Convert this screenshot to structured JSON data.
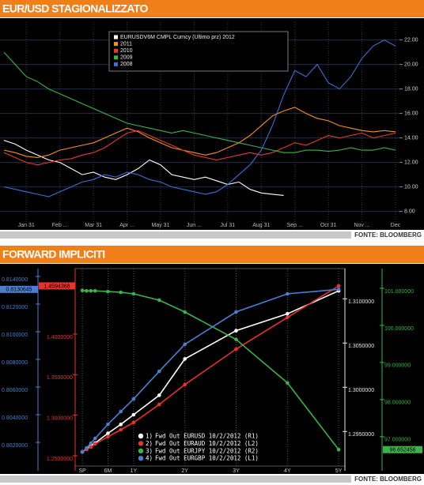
{
  "chart_data": [
    {
      "type": "line",
      "title": "EUR/USD STAGIONALIZZATO",
      "source": "FONTE: BLOOMBERG",
      "categories": [
        null,
        null,
        "Jan 31",
        null,
        null,
        "Feb ...",
        null,
        null,
        "Mar 31",
        null,
        null,
        "Apr ...",
        null,
        null,
        "May 31",
        null,
        null,
        "Jun ...",
        null,
        null,
        "Jul 31",
        null,
        null,
        "Aug 31",
        null,
        null,
        "Sep ...",
        null,
        null,
        "Oct 31",
        null,
        null,
        "Nov ...",
        null,
        null,
        "Dec"
      ],
      "series": [
        {
          "name": "EURUSDV6M CMPL Curncy (Ultimo prz) 2012",
          "color": "#ffffff",
          "values": [
            13.8,
            13.5,
            13.0,
            12.6,
            12.2,
            12.0,
            11.5,
            11.0,
            11.2,
            10.8,
            10.6,
            11.0,
            11.5,
            12.2,
            11.8,
            11.0,
            10.8,
            10.6,
            10.8,
            10.5,
            10.2,
            10.4,
            9.8,
            9.5,
            9.4,
            9.3,
            null,
            null,
            null,
            null,
            null,
            null,
            null,
            null,
            null,
            null
          ]
        },
        {
          "name": "2011",
          "color": "#f5901e",
          "values": [
            13.0,
            12.8,
            12.5,
            12.4,
            12.6,
            13.0,
            13.2,
            13.4,
            13.6,
            14.0,
            14.4,
            14.8,
            14.5,
            14.0,
            13.6,
            13.2,
            13.0,
            12.8,
            12.6,
            12.8,
            13.2,
            13.6,
            14.2,
            15.0,
            15.8,
            16.2,
            16.5,
            16.0,
            15.6,
            15.4,
            15.0,
            14.8,
            14.6,
            14.5,
            14.6,
            14.5
          ]
        },
        {
          "name": "2010",
          "color": "#e83a2a",
          "values": [
            12.8,
            12.4,
            12.0,
            11.8,
            12.0,
            12.2,
            12.3,
            12.6,
            12.8,
            13.2,
            13.8,
            14.4,
            14.6,
            14.2,
            13.8,
            13.4,
            13.0,
            12.6,
            12.4,
            12.2,
            12.4,
            12.6,
            12.8,
            12.6,
            12.8,
            13.2,
            13.6,
            13.4,
            13.8,
            14.2,
            14.0,
            14.2,
            14.4,
            14.0,
            14.2,
            14.4
          ]
        },
        {
          "name": "2009",
          "color": "#3cb34a",
          "values": [
            21.0,
            20.0,
            19.0,
            18.6,
            18.0,
            17.6,
            17.2,
            16.8,
            16.4,
            16.0,
            15.6,
            15.2,
            15.0,
            14.8,
            14.6,
            14.4,
            14.6,
            14.4,
            14.2,
            14.0,
            13.8,
            13.6,
            13.4,
            13.2,
            13.0,
            12.8,
            12.8,
            13.0,
            13.0,
            12.9,
            13.0,
            13.2,
            13.0,
            13.0,
            13.2,
            13.0
          ]
        },
        {
          "name": "2008",
          "color": "#3b6fd4",
          "values": [
            10.0,
            9.8,
            9.6,
            9.4,
            9.2,
            9.6,
            10.0,
            10.4,
            10.6,
            11.0,
            10.8,
            11.2,
            11.0,
            10.6,
            10.4,
            10.0,
            9.8,
            9.6,
            9.4,
            9.6,
            10.2,
            11.0,
            11.8,
            13.0,
            15.0,
            17.5,
            19.5,
            19.0,
            20.0,
            18.5,
            18.0,
            19.0,
            20.5,
            21.5,
            22.0,
            21.5
          ]
        }
      ],
      "ylim": [
        7.2,
        23.2
      ],
      "yticks": [
        {
          "value": 22,
          "label": "22.00"
        },
        {
          "value": 20,
          "label": "20.00"
        },
        {
          "value": 18,
          "label": "18.00"
        },
        {
          "value": 16,
          "label": "16.00"
        },
        {
          "value": 14,
          "label": "14.00"
        },
        {
          "value": 12,
          "label": "12.00"
        },
        {
          "value": 10,
          "label": "10.00"
        },
        {
          "value": 8,
          "label": "8.00"
        }
      ],
      "grid": true
    },
    {
      "type": "multi_axis_line",
      "title": "FORWARD IMPLICITI",
      "source": "FONTE: BLOOMBERG",
      "x": [
        0,
        0.083,
        0.167,
        0.25,
        0.5,
        0.75,
        1,
        1.5,
        2,
        3,
        4,
        5
      ],
      "xlim": [
        -0.14,
        5.06
      ],
      "xticks": [
        {
          "value": 0,
          "label": "SP"
        },
        {
          "value": 0.5,
          "label": "6M"
        },
        {
          "value": 1,
          "label": "1Y"
        },
        {
          "value": 2,
          "label": "2Y"
        },
        {
          "value": 3,
          "label": "3Y"
        },
        {
          "value": 4,
          "label": "4Y"
        },
        {
          "value": 5,
          "label": "5Y"
        }
      ],
      "axes": {
        "L1": {
          "color": "#4a7fd0",
          "lim": [
            0.80029,
            0.81411
          ],
          "ticks": [
            {
              "value": 0.814,
              "label": "0.8140000"
            },
            {
              "value": 0.812,
              "label": "0.8120000"
            },
            {
              "value": 0.81,
              "label": "0.8100000"
            },
            {
              "value": 0.808,
              "label": "0.8080000"
            },
            {
              "value": 0.806,
              "label": "0.8060000"
            },
            {
              "value": 0.804,
              "label": "0.8040000"
            },
            {
              "value": 0.802,
              "label": "0.8020000"
            }
          ]
        },
        "L2": {
          "color": "#e8332a",
          "lim": [
            1.2373,
            1.473
          ],
          "ticks": [
            {
              "value": 1.4,
              "label": "1.4000000"
            },
            {
              "value": 1.35,
              "label": "1.3500000"
            },
            {
              "value": 1.3,
              "label": "1.3000000"
            },
            {
              "value": 1.25,
              "label": "1.2500000"
            }
          ]
        },
        "R1": {
          "color": "#e6e6e6",
          "lim": [
            1.2911,
            1.3127
          ],
          "ticks": [
            {
              "value": 1.31,
              "label": "1.3100000"
            },
            {
              "value": 1.305,
              "label": "1.3050000"
            },
            {
              "value": 1.3,
              "label": "1.3000000"
            },
            {
              "value": 1.295,
              "label": "1.2950000"
            }
          ]
        },
        "R2": {
          "color": "#3cb34a",
          "lim": [
            96.21,
            101.36
          ],
          "ticks": [
            {
              "value": 101,
              "label": "101.000000"
            },
            {
              "value": 100,
              "label": "100.000000"
            },
            {
              "value": 99,
              "label": "99.000000"
            },
            {
              "value": 98,
              "label": "98.000000"
            },
            {
              "value": 97,
              "label": "97.000000"
            }
          ]
        }
      },
      "series": [
        {
          "number": "1)",
          "name": "Fwd Out EURUSD 10/2/2012 (R1)",
          "color": "#ffffff",
          "axis": "R1",
          "values": [
            1.2927,
            1.293,
            1.2934,
            1.2937,
            1.2948,
            1.2958,
            1.2969,
            1.2991,
            1.3032,
            1.3064,
            1.3083,
            1.3109
          ]
        },
        {
          "number": "2)",
          "name": "Fwd Out EURAUD 10/2/2012 (L2)",
          "color": "#e8332a",
          "axis": "L2",
          "values": [
            1.2549,
            1.2578,
            1.2607,
            1.2646,
            1.2734,
            1.2821,
            1.2909,
            1.3133,
            1.3377,
            1.3815,
            1.4205,
            1.4594368
          ],
          "last_label": "1.4594368"
        },
        {
          "number": "3)",
          "name": "Fwd Out EURJPY 10/2/2012 (R2)",
          "color": "#3cb34a",
          "axis": "R2",
          "values": [
            100.94,
            100.93,
            100.93,
            100.93,
            100.91,
            100.89,
            100.85,
            100.68,
            100.36,
            99.62,
            98.45,
            96.652456
          ],
          "last_label": "96.652456"
        },
        {
          "number": "4)",
          "name": "Fwd Out EURGBP 10/2/2012 (L1)",
          "color": "#4a7fd0",
          "axis": "L1",
          "values": [
            0.80131,
            0.8016,
            0.80194,
            0.80229,
            0.80331,
            0.80423,
            0.80514,
            0.80714,
            0.80909,
            0.81143,
            0.81274,
            0.8130645
          ],
          "last_label": "0.8130645"
        }
      ],
      "grid": true
    }
  ]
}
